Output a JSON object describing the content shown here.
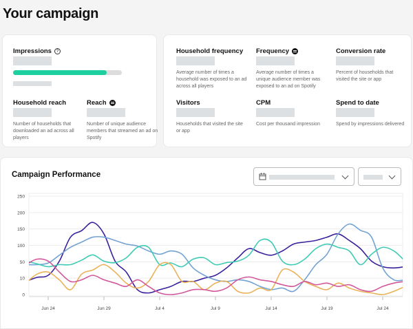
{
  "page": {
    "title": "Your campaign"
  },
  "summary": {
    "impressions": {
      "label": "Impressions",
      "progress_percent": 86,
      "help_icon": "question-circle-icon"
    },
    "household_reach": {
      "label": "Household reach",
      "desc": "Number of households that downloaded an ad across all players"
    },
    "reach": {
      "label": "Reach",
      "icon": "spotify-icon",
      "desc": "Number of unique audience members that streamed an ad on Spotify"
    }
  },
  "metrics": [
    {
      "label": "Household frequency",
      "desc": "Average number of times a household was exposed to an ad across all players"
    },
    {
      "label": "Frequency",
      "icon": "spotify-icon",
      "desc": "Average number of times a unique audience member was exposed to an ad on Spotify"
    },
    {
      "label": "Conversion rate",
      "desc": "Percent of households that visited the site or app"
    },
    {
      "label": "Visitors",
      "desc": "Households that visited the site or app"
    },
    {
      "label": "CPM",
      "desc": "Cost per thousand impression"
    },
    {
      "label": "Spend to date",
      "desc": "Spend by impressions delivered"
    }
  ],
  "performance": {
    "title": "Campaign Performance",
    "date_icon": "calendar-icon"
  },
  "colors": {
    "accent": "#1ed0a0",
    "purple": "#3a1f9c",
    "blue": "#72a2d4",
    "teal": "#3fcbb3",
    "orange": "#eab258",
    "pink": "#d2579a"
  },
  "chart_data": {
    "type": "line",
    "title": "",
    "xlabel": "",
    "ylabel": "",
    "y_ticks": [
      "0",
      "10",
      "50",
      "100",
      "150",
      "200",
      "250"
    ],
    "x_ticks": [
      "Jun 24",
      "Jun 29",
      "Jul 4",
      "Jul 9",
      "Jul 14",
      "Jul 19",
      "Jul 24"
    ],
    "grid": true,
    "x": [
      "Jun 22",
      "Jun 23",
      "Jun 24",
      "Jun 25",
      "Jun 26",
      "Jun 27",
      "Jun 28",
      "Jun 29",
      "Jun 30",
      "Jul 1",
      "Jul 2",
      "Jul 3",
      "Jul 4",
      "Jul 5",
      "Jul 6",
      "Jul 7",
      "Jul 8",
      "Jul 9",
      "Jul 10",
      "Jul 11",
      "Jul 12",
      "Jul 13",
      "Jul 14",
      "Jul 15",
      "Jul 16",
      "Jul 17",
      "Jul 18",
      "Jul 19",
      "Jul 20",
      "Jul 21",
      "Jul 22",
      "Jul 23",
      "Jul 24",
      "Jul 25",
      "Jul 26"
    ],
    "series": [
      {
        "color": "#3a1f9c",
        "values": [
          8,
          12,
          17,
          52,
          125,
          145,
          170,
          135,
          52,
          25,
          3,
          1,
          3,
          5,
          8,
          8,
          10,
          17,
          35,
          62,
          90,
          78,
          70,
          83,
          104,
          110,
          115,
          125,
          135,
          115,
          90,
          52,
          38,
          35,
          38
        ]
      },
      {
        "color": "#72a2d4",
        "values": [
          43,
          43,
          47,
          70,
          94,
          110,
          125,
          125,
          115,
          104,
          98,
          83,
          73,
          83,
          73,
          35,
          17,
          9,
          8,
          9,
          8,
          5,
          3,
          4,
          2,
          9,
          43,
          73,
          135,
          165,
          146,
          125,
          35,
          9,
          9
        ]
      },
      {
        "color": "#3fcbb3",
        "values": [
          52,
          45,
          38,
          43,
          43,
          55,
          71,
          52,
          48,
          62,
          94,
          94,
          43,
          47,
          38,
          58,
          62,
          43,
          48,
          52,
          70,
          115,
          110,
          52,
          43,
          58,
          90,
          104,
          94,
          83,
          43,
          73,
          94,
          83,
          52
        ]
      },
      {
        "color": "#eab258",
        "values": [
          7,
          20,
          25,
          9,
          3,
          20,
          30,
          43,
          25,
          7,
          4,
          8,
          43,
          43,
          8,
          8,
          3,
          7,
          8,
          2,
          1,
          4,
          3,
          30,
          25,
          8,
          5,
          3,
          7,
          4,
          2,
          1,
          0,
          2,
          5
        ]
      },
      {
        "color": "#d2579a",
        "values": [
          43,
          58,
          52,
          25,
          8,
          9,
          17,
          9,
          7,
          5,
          9,
          5,
          1,
          0,
          1,
          3,
          3,
          2,
          4,
          9,
          13,
          9,
          8,
          6,
          5,
          8,
          6,
          7,
          5,
          6,
          3,
          2,
          5,
          7,
          8
        ]
      }
    ]
  }
}
